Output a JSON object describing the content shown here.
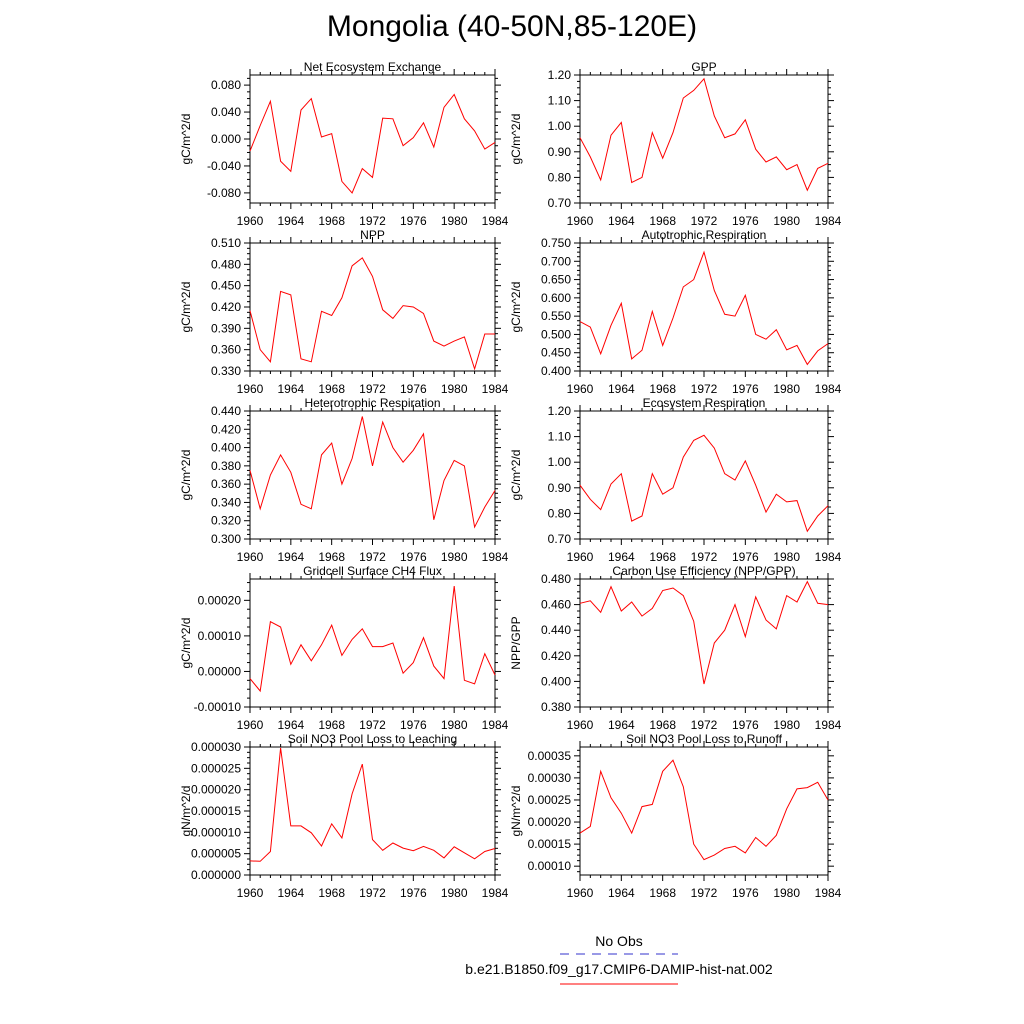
{
  "title": "Mongolia (40-50N,85-120E)",
  "legend": [
    {
      "label": "No Obs",
      "color": "#3333cc",
      "style": "dashed"
    },
    {
      "label": "b.e21.B1850.f09_g17.CMIP6-DAMIP-hist-nat.002",
      "color": "#ff0000",
      "style": "solid"
    }
  ],
  "chart_data": [
    {
      "type": "line",
      "title": "Net Ecosystem Exchange",
      "ylabel": "gC/m^2/d",
      "xlim": [
        1960,
        1984
      ],
      "ylim": [
        -0.095,
        0.095
      ],
      "yticks": [
        -0.08,
        -0.04,
        0.0,
        0.04,
        0.08
      ],
      "ytick_labels": [
        "-0.080",
        "-0.040",
        "0.000",
        "0.040",
        "0.080"
      ],
      "xticks": [
        1960,
        1964,
        1968,
        1972,
        1976,
        1980,
        1984
      ],
      "x": [
        1960,
        1961,
        1962,
        1963,
        1964,
        1965,
        1966,
        1967,
        1968,
        1969,
        1970,
        1971,
        1972,
        1973,
        1974,
        1975,
        1976,
        1977,
        1978,
        1979,
        1980,
        1981,
        1982,
        1983,
        1984
      ],
      "series": [
        {
          "values": [
            -0.018,
            0.02,
            0.056,
            -0.033,
            -0.048,
            0.043,
            0.06,
            0.003,
            0.008,
            -0.063,
            -0.08,
            -0.044,
            -0.057,
            0.031,
            0.03,
            -0.01,
            0.002,
            0.024,
            -0.012,
            0.047,
            0.066,
            0.03,
            0.012,
            -0.015,
            -0.005
          ],
          "color": "#ff0000"
        }
      ]
    },
    {
      "type": "line",
      "title": "GPP",
      "ylabel": "gC/m^2/d",
      "xlim": [
        1960,
        1984
      ],
      "ylim": [
        0.7,
        1.2
      ],
      "yticks": [
        0.7,
        0.8,
        0.9,
        1.0,
        1.1,
        1.2
      ],
      "ytick_labels": [
        "0.70",
        "0.80",
        "0.90",
        "1.00",
        "1.10",
        "1.20"
      ],
      "xticks": [
        1960,
        1964,
        1968,
        1972,
        1976,
        1980,
        1984
      ],
      "x": [
        1960,
        1961,
        1962,
        1963,
        1964,
        1965,
        1966,
        1967,
        1968,
        1969,
        1970,
        1971,
        1972,
        1973,
        1974,
        1975,
        1976,
        1977,
        1978,
        1979,
        1980,
        1981,
        1982,
        1983,
        1984
      ],
      "series": [
        {
          "values": [
            0.955,
            0.88,
            0.79,
            0.965,
            1.015,
            0.78,
            0.8,
            0.975,
            0.875,
            0.975,
            1.11,
            1.14,
            1.185,
            1.04,
            0.955,
            0.97,
            1.025,
            0.91,
            0.86,
            0.88,
            0.83,
            0.85,
            0.75,
            0.835,
            0.855
          ],
          "color": "#ff0000"
        }
      ]
    },
    {
      "type": "line",
      "title": "NPP",
      "ylabel": "gC/m^2/d",
      "xlim": [
        1960,
        1984
      ],
      "ylim": [
        0.33,
        0.51
      ],
      "yticks": [
        0.33,
        0.36,
        0.39,
        0.42,
        0.45,
        0.48,
        0.51
      ],
      "ytick_labels": [
        "0.330",
        "0.360",
        "0.390",
        "0.420",
        "0.450",
        "0.480",
        "0.510"
      ],
      "xticks": [
        1960,
        1964,
        1968,
        1972,
        1976,
        1980,
        1984
      ],
      "x": [
        1960,
        1961,
        1962,
        1963,
        1964,
        1965,
        1966,
        1967,
        1968,
        1969,
        1970,
        1971,
        1972,
        1973,
        1974,
        1975,
        1976,
        1977,
        1978,
        1979,
        1980,
        1981,
        1982,
        1983,
        1984
      ],
      "series": [
        {
          "values": [
            0.415,
            0.36,
            0.343,
            0.442,
            0.437,
            0.347,
            0.343,
            0.414,
            0.408,
            0.433,
            0.478,
            0.489,
            0.463,
            0.416,
            0.404,
            0.422,
            0.42,
            0.411,
            0.372,
            0.365,
            0.372,
            0.378,
            0.333,
            0.382,
            0.382
          ],
          "color": "#ff0000"
        }
      ]
    },
    {
      "type": "line",
      "title": "Autotrophic Respiration",
      "ylabel": "gC/m^2/d",
      "xlim": [
        1960,
        1984
      ],
      "ylim": [
        0.4,
        0.75
      ],
      "yticks": [
        0.4,
        0.45,
        0.5,
        0.55,
        0.6,
        0.65,
        0.7,
        0.75
      ],
      "ytick_labels": [
        "0.400",
        "0.450",
        "0.500",
        "0.550",
        "0.600",
        "0.650",
        "0.700",
        "0.750"
      ],
      "xticks": [
        1960,
        1964,
        1968,
        1972,
        1976,
        1980,
        1984
      ],
      "x": [
        1960,
        1961,
        1962,
        1963,
        1964,
        1965,
        1966,
        1967,
        1968,
        1969,
        1970,
        1971,
        1972,
        1973,
        1974,
        1975,
        1976,
        1977,
        1978,
        1979,
        1980,
        1981,
        1982,
        1983,
        1984
      ],
      "series": [
        {
          "values": [
            0.535,
            0.52,
            0.447,
            0.525,
            0.585,
            0.433,
            0.457,
            0.563,
            0.47,
            0.545,
            0.63,
            0.65,
            0.725,
            0.62,
            0.555,
            0.55,
            0.607,
            0.5,
            0.487,
            0.513,
            0.458,
            0.47,
            0.418,
            0.455,
            0.475
          ],
          "color": "#ff0000"
        }
      ]
    },
    {
      "type": "line",
      "title": "Heterotrophic Respiration",
      "ylabel": "gC/m^2/d",
      "xlim": [
        1960,
        1984
      ],
      "ylim": [
        0.3,
        0.44
      ],
      "yticks": [
        0.3,
        0.32,
        0.34,
        0.36,
        0.38,
        0.4,
        0.42,
        0.44
      ],
      "ytick_labels": [
        "0.300",
        "0.320",
        "0.340",
        "0.360",
        "0.380",
        "0.400",
        "0.420",
        "0.440"
      ],
      "xticks": [
        1960,
        1964,
        1968,
        1972,
        1976,
        1980,
        1984
      ],
      "x": [
        1960,
        1961,
        1962,
        1963,
        1964,
        1965,
        1966,
        1967,
        1968,
        1969,
        1970,
        1971,
        1972,
        1973,
        1974,
        1975,
        1976,
        1977,
        1978,
        1979,
        1980,
        1981,
        1982,
        1983,
        1984
      ],
      "series": [
        {
          "values": [
            0.375,
            0.333,
            0.37,
            0.392,
            0.373,
            0.338,
            0.333,
            0.392,
            0.405,
            0.36,
            0.388,
            0.434,
            0.38,
            0.428,
            0.4,
            0.384,
            0.397,
            0.415,
            0.321,
            0.364,
            0.386,
            0.38,
            0.313,
            0.335,
            0.353
          ],
          "color": "#ff0000"
        }
      ]
    },
    {
      "type": "line",
      "title": "Ecosystem Respiration",
      "ylabel": "gC/m^2/d",
      "xlim": [
        1960,
        1984
      ],
      "ylim": [
        0.7,
        1.2
      ],
      "yticks": [
        0.7,
        0.8,
        0.9,
        1.0,
        1.1,
        1.2
      ],
      "ytick_labels": [
        "0.70",
        "0.80",
        "0.90",
        "1.00",
        "1.10",
        "1.20"
      ],
      "xticks": [
        1960,
        1964,
        1968,
        1972,
        1976,
        1980,
        1984
      ],
      "x": [
        1960,
        1961,
        1962,
        1963,
        1964,
        1965,
        1966,
        1967,
        1968,
        1969,
        1970,
        1971,
        1972,
        1973,
        1974,
        1975,
        1976,
        1977,
        1978,
        1979,
        1980,
        1981,
        1982,
        1983,
        1984
      ],
      "series": [
        {
          "values": [
            0.91,
            0.855,
            0.815,
            0.915,
            0.955,
            0.77,
            0.79,
            0.955,
            0.875,
            0.9,
            1.02,
            1.085,
            1.105,
            1.055,
            0.955,
            0.93,
            1.005,
            0.91,
            0.805,
            0.875,
            0.845,
            0.85,
            0.73,
            0.79,
            0.83
          ],
          "color": "#ff0000"
        }
      ]
    },
    {
      "type": "line",
      "title": "Gridcell Surface CH4 Flux",
      "ylabel": "gC/m^2/d",
      "xlim": [
        1960,
        1984
      ],
      "ylim": [
        -0.0001,
        0.00026
      ],
      "yticks": [
        -0.0001,
        0.0,
        0.0001,
        0.0002
      ],
      "ytick_labels": [
        "-0.00010",
        "0.00000",
        "0.00010",
        "0.00020"
      ],
      "xticks": [
        1960,
        1964,
        1968,
        1972,
        1976,
        1980,
        1984
      ],
      "x": [
        1960,
        1961,
        1962,
        1963,
        1964,
        1965,
        1966,
        1967,
        1968,
        1969,
        1970,
        1971,
        1972,
        1973,
        1974,
        1975,
        1976,
        1977,
        1978,
        1979,
        1980,
        1981,
        1982,
        1983,
        1984
      ],
      "series": [
        {
          "values": [
            -2e-05,
            -5.5e-05,
            0.00014,
            0.000125,
            2e-05,
            7.5e-05,
            3e-05,
            7.5e-05,
            0.00013,
            4.5e-05,
            9e-05,
            0.00012,
            7e-05,
            7e-05,
            8e-05,
            -5e-06,
            2.5e-05,
            9.5e-05,
            1.5e-05,
            -2e-05,
            0.00024,
            -2.5e-05,
            -3.5e-05,
            5e-05,
            -1e-05
          ],
          "color": "#ff0000"
        }
      ]
    },
    {
      "type": "line",
      "title": "Carbon Use Efficiency (NPP/GPP)",
      "ylabel": "NPP/GPP",
      "xlim": [
        1960,
        1984
      ],
      "ylim": [
        0.38,
        0.48
      ],
      "yticks": [
        0.38,
        0.4,
        0.42,
        0.44,
        0.46,
        0.48
      ],
      "ytick_labels": [
        "0.380",
        "0.400",
        "0.420",
        "0.440",
        "0.460",
        "0.480"
      ],
      "xticks": [
        1960,
        1964,
        1968,
        1972,
        1976,
        1980,
        1984
      ],
      "x": [
        1960,
        1961,
        1962,
        1963,
        1964,
        1965,
        1966,
        1967,
        1968,
        1969,
        1970,
        1971,
        1972,
        1973,
        1974,
        1975,
        1976,
        1977,
        1978,
        1979,
        1980,
        1981,
        1982,
        1983,
        1984
      ],
      "series": [
        {
          "values": [
            0.461,
            0.463,
            0.454,
            0.474,
            0.455,
            0.462,
            0.451,
            0.457,
            0.471,
            0.473,
            0.467,
            0.447,
            0.398,
            0.43,
            0.44,
            0.46,
            0.435,
            0.466,
            0.448,
            0.441,
            0.467,
            0.462,
            0.478,
            0.461,
            0.46
          ],
          "color": "#ff0000"
        }
      ]
    },
    {
      "type": "line",
      "title": "Soil NO3 Pool Loss to Leaching",
      "ylabel": "gN/m^2/d",
      "xlim": [
        1960,
        1984
      ],
      "ylim": [
        0.0,
        3e-05
      ],
      "yticks": [
        0.0,
        5e-06,
        1e-05,
        1.5e-05,
        2e-05,
        2.5e-05,
        3e-05
      ],
      "ytick_labels": [
        "0.000000",
        "0.000005",
        "0.000010",
        "0.000015",
        "0.000020",
        "0.000025",
        "0.000030"
      ],
      "xticks": [
        1960,
        1964,
        1968,
        1972,
        1976,
        1980,
        1984
      ],
      "x": [
        1960,
        1961,
        1962,
        1963,
        1964,
        1965,
        1966,
        1967,
        1968,
        1969,
        1970,
        1971,
        1972,
        1973,
        1974,
        1975,
        1976,
        1977,
        1978,
        1979,
        1980,
        1981,
        1982,
        1983,
        1984
      ],
      "series": [
        {
          "values": [
            3.3e-06,
            3.2e-06,
            5.5e-06,
            2.98e-05,
            1.15e-05,
            1.15e-05,
            9.9e-06,
            6.8e-06,
            1.2e-05,
            8.7e-06,
            1.9e-05,
            2.6e-05,
            8.3e-06,
            5.8e-06,
            7.5e-06,
            6.3e-06,
            5.7e-06,
            6.7e-06,
            5.8e-06,
            4e-06,
            6.6e-06,
            5.2e-06,
            3.8e-06,
            5.5e-06,
            6.2e-06
          ],
          "color": "#ff0000"
        }
      ]
    },
    {
      "type": "line",
      "title": "Soil NO3 Pool Loss to Runoff",
      "ylabel": "gN/m^2/d",
      "xlim": [
        1960,
        1984
      ],
      "ylim": [
        8e-05,
        0.00037
      ],
      "yticks": [
        0.0001,
        0.00015,
        0.0002,
        0.00025,
        0.0003,
        0.00035
      ],
      "ytick_labels": [
        "0.00010",
        "0.00015",
        "0.00020",
        "0.00025",
        "0.00030",
        "0.00035"
      ],
      "xticks": [
        1960,
        1964,
        1968,
        1972,
        1976,
        1980,
        1984
      ],
      "x": [
        1960,
        1961,
        1962,
        1963,
        1964,
        1965,
        1966,
        1967,
        1968,
        1969,
        1970,
        1971,
        1972,
        1973,
        1974,
        1975,
        1976,
        1977,
        1978,
        1979,
        1980,
        1981,
        1982,
        1983,
        1984
      ],
      "series": [
        {
          "values": [
            0.000175,
            0.00019,
            0.000315,
            0.000255,
            0.00022,
            0.000175,
            0.000235,
            0.00024,
            0.000315,
            0.00034,
            0.00028,
            0.00015,
            0.000115,
            0.000125,
            0.00014,
            0.000145,
            0.00013,
            0.000165,
            0.000145,
            0.00017,
            0.00023,
            0.000275,
            0.000278,
            0.00029,
            0.00025
          ],
          "color": "#ff0000"
        }
      ]
    }
  ]
}
